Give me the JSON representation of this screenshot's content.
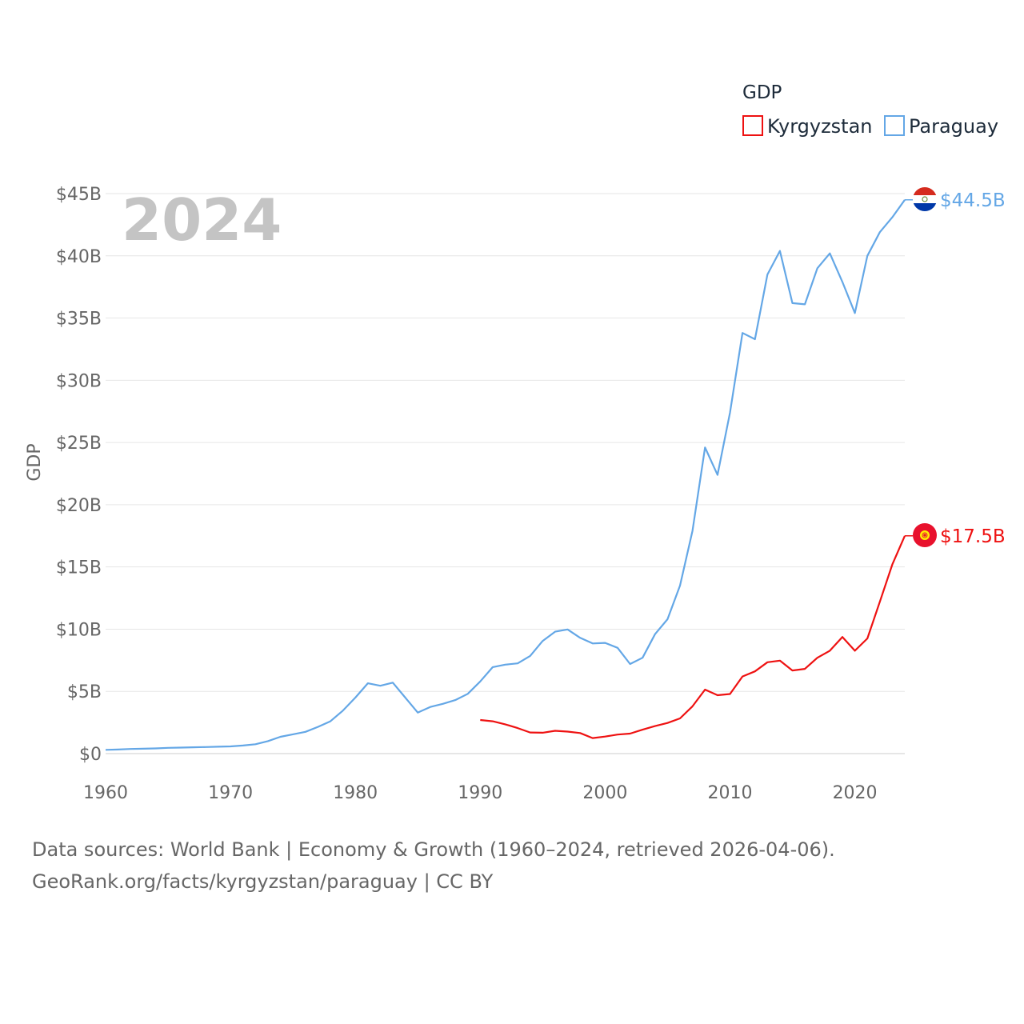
{
  "chart_data": {
    "type": "line",
    "title": "",
    "year_label": "2024",
    "xlabel": "",
    "ylabel": "GDP",
    "xlim": [
      1960,
      2024
    ],
    "ylim": [
      0,
      45
    ],
    "x_ticks": [
      1960,
      1970,
      1980,
      1990,
      2000,
      2010,
      2020
    ],
    "x_tick_labels": [
      "1960",
      "1970",
      "1980",
      "1990",
      "2000",
      "2010",
      "2020"
    ],
    "y_ticks": [
      0,
      5,
      10,
      15,
      20,
      25,
      30,
      35,
      40,
      45
    ],
    "y_tick_labels": [
      "$0",
      "$5B",
      "$10B",
      "$15B",
      "$20B",
      "$25B",
      "$30B",
      "$35B",
      "$40B",
      "$45B"
    ],
    "legend": {
      "title": "GDP",
      "position": "top-right"
    },
    "series": [
      {
        "name": "Kyrgyzstan",
        "color": "#ee1111",
        "flag_icon": "kyrgyzstan-flag-icon",
        "end_label": "$17.5B",
        "x": [
          1990,
          1991,
          1992,
          1993,
          1994,
          1995,
          1996,
          1997,
          1998,
          1999,
          2000,
          2001,
          2002,
          2003,
          2004,
          2005,
          2006,
          2007,
          2008,
          2009,
          2010,
          2011,
          2012,
          2013,
          2014,
          2015,
          2016,
          2017,
          2018,
          2019,
          2020,
          2021,
          2022,
          2023,
          2024
        ],
        "values": [
          2.7,
          2.6,
          2.35,
          2.05,
          1.7,
          1.68,
          1.83,
          1.77,
          1.65,
          1.25,
          1.37,
          1.53,
          1.61,
          1.92,
          2.21,
          2.46,
          2.83,
          3.8,
          5.14,
          4.69,
          4.79,
          6.2,
          6.61,
          7.34,
          7.47,
          6.68,
          6.81,
          7.7,
          8.27,
          9.37,
          8.27,
          9.25,
          12.2,
          15.2,
          17.5
        ]
      },
      {
        "name": "Paraguay",
        "color": "#64a7e6",
        "flag_icon": "paraguay-flag-icon",
        "end_label": "$44.5B",
        "x": [
          1960,
          1961,
          1962,
          1963,
          1964,
          1965,
          1966,
          1967,
          1968,
          1969,
          1970,
          1971,
          1972,
          1973,
          1974,
          1975,
          1976,
          1977,
          1978,
          1979,
          1980,
          1981,
          1982,
          1983,
          1984,
          1985,
          1986,
          1987,
          1988,
          1989,
          1990,
          1991,
          1992,
          1993,
          1994,
          1995,
          1996,
          1997,
          1998,
          1999,
          2000,
          2001,
          2002,
          2003,
          2004,
          2005,
          2006,
          2007,
          2008,
          2009,
          2010,
          2011,
          2012,
          2013,
          2014,
          2015,
          2016,
          2017,
          2018,
          2019,
          2020,
          2021,
          2022,
          2023,
          2024
        ],
        "values": [
          0.3,
          0.33,
          0.37,
          0.39,
          0.42,
          0.46,
          0.48,
          0.51,
          0.53,
          0.55,
          0.58,
          0.65,
          0.75,
          1.0,
          1.35,
          1.55,
          1.75,
          2.15,
          2.6,
          3.45,
          4.5,
          5.65,
          5.45,
          5.7,
          4.5,
          3.3,
          3.75,
          4.0,
          4.3,
          4.8,
          5.8,
          6.95,
          7.15,
          7.25,
          7.85,
          9.05,
          9.8,
          9.98,
          9.3,
          8.85,
          8.9,
          8.5,
          7.2,
          7.7,
          9.6,
          10.8,
          13.5,
          17.9,
          24.6,
          22.4,
          27.4,
          33.8,
          33.3,
          38.5,
          40.4,
          36.2,
          36.1,
          39.0,
          40.2,
          37.9,
          35.4,
          40.0,
          41.9,
          43.1,
          44.5
        ]
      }
    ],
    "source_lines": [
      "Data sources: World Bank | Economy & Growth (1960–2024, retrieved 2026-04-06).",
      "GeoRank.org/facts/kyrgyzstan/paraguay | CC BY"
    ]
  }
}
